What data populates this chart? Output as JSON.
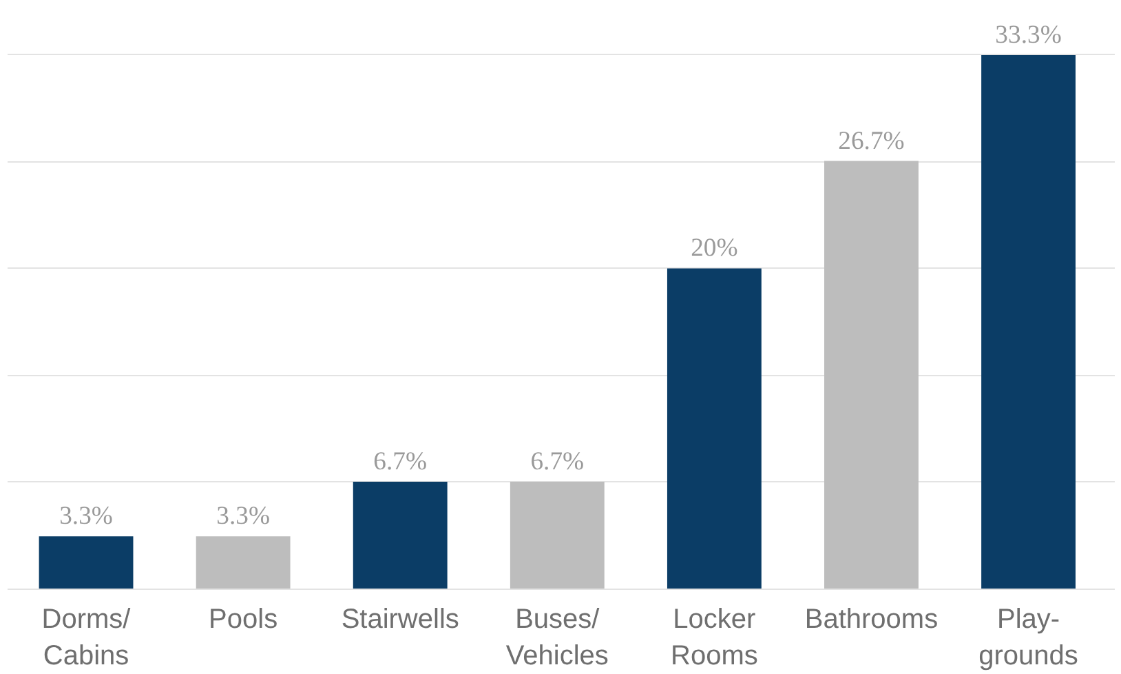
{
  "chart_data": {
    "type": "bar",
    "categories": [
      "Dorms/\nCabins",
      "Pools",
      "Stairwells",
      "Buses/\nVehicles",
      "Locker\nRooms",
      "Bathrooms",
      "Play-\ngrounds"
    ],
    "values": [
      3.3,
      3.3,
      6.7,
      6.7,
      20,
      26.7,
      33.3
    ],
    "colors": [
      "#0b3d66",
      "#bdbdbd",
      "#0b3d66",
      "#bdbdbd",
      "#0b3d66",
      "#bdbdbd",
      "#0b3d66"
    ],
    "value_labels": [
      "3.3%",
      "3.3%",
      "6.7%",
      "6.7%",
      "20%",
      "26.7%",
      "33.3%"
    ],
    "ylim": [
      0,
      33.33
    ],
    "yticks": [
      {
        "value": 0,
        "label": null
      },
      {
        "value": 6.67,
        "label": null
      },
      {
        "value": 13.33,
        "label": null
      },
      {
        "value": 20,
        "label": null
      },
      {
        "value": 26.67,
        "label": null
      },
      {
        "value": 33.33,
        "label": null
      }
    ],
    "grid": "y",
    "tick_labels": "x"
  }
}
